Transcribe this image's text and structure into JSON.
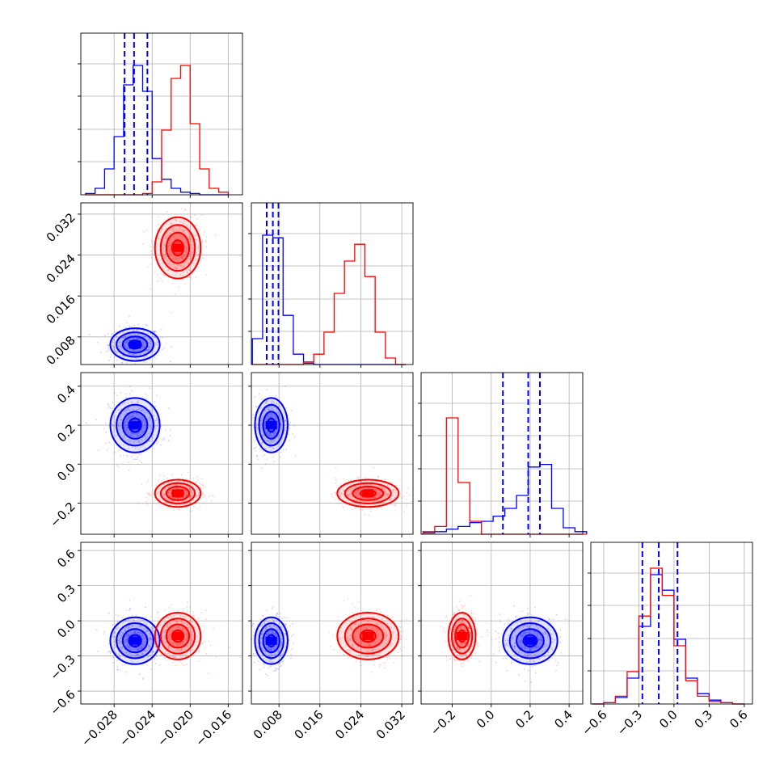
{
  "figure": {
    "background": "#ffffff",
    "grid": true,
    "colors": {
      "blue": "#0000ff",
      "red": "#ff0000",
      "grid": "#b0b0b0"
    }
  },
  "chart_data": {
    "type": "corner",
    "parameters": 4,
    "axis_ranges": [
      [
        -0.0315,
        -0.0145
      ],
      [
        0.0026,
        0.0342
      ],
      [
        -0.36,
        0.47
      ],
      [
        -0.71,
        0.67
      ]
    ],
    "x_ticks": [
      {
        "values": [
          -0.028,
          -0.024,
          -0.02,
          -0.016
        ],
        "labels": [
          "−0.028",
          "−0.024",
          "−0.020",
          "−0.016"
        ]
      },
      {
        "values": [
          0.008,
          0.016,
          0.024,
          0.032
        ],
        "labels": [
          "0.008",
          "0.016",
          "0.024",
          "0.032"
        ]
      },
      {
        "values": [
          -0.2,
          0.0,
          0.2,
          0.4
        ],
        "labels": [
          "−0.2",
          "0.0",
          "0.2",
          "0.4"
        ]
      },
      {
        "values": [
          -0.6,
          -0.3,
          0.0,
          0.3,
          0.6
        ],
        "labels": [
          "−0.6",
          "−0.3",
          "0.0",
          "0.3",
          "0.6"
        ]
      }
    ],
    "y_ticks": [
      null,
      {
        "values": [
          0.008,
          0.016,
          0.024,
          0.032
        ],
        "labels": [
          "0.008",
          "0.016",
          "0.024",
          "0.032"
        ]
      },
      {
        "values": [
          -0.2,
          0.0,
          0.2,
          0.4
        ],
        "labels": [
          "−0.2",
          "0.0",
          "0.2",
          "0.4"
        ]
      },
      {
        "values": [
          -0.6,
          -0.3,
          0.0,
          0.3,
          0.6
        ],
        "labels": [
          "−0.6",
          "−0.3",
          "0.0",
          "0.3",
          "0.6"
        ]
      }
    ],
    "series": [
      {
        "color": "#0000ff",
        "means": [
          -0.0258,
          0.0065,
          0.2,
          -0.17
        ],
        "sds": [
          0.0013,
          0.0016,
          0.07,
          0.1
        ],
        "quantile_lines": [
          [
            -0.0269,
            -0.0259,
            -0.0245
          ],
          [
            0.0056,
            0.0068,
            0.0079
          ],
          [
            0.06,
            0.19,
            0.25
          ],
          [
            -0.27,
            -0.13,
            0.03
          ]
        ]
      },
      {
        "color": "#ff0000",
        "means": [
          -0.0213,
          0.0254,
          -0.15,
          -0.13
        ],
        "sds": [
          0.0012,
          0.003,
          0.035,
          0.1
        ]
      }
    ],
    "histograms": [
      {
        "edges": [
          -0.031,
          -0.03,
          -0.029,
          -0.028,
          -0.027,
          -0.026,
          -0.025,
          -0.024,
          -0.023,
          -0.022,
          -0.021,
          -0.02,
          -0.019,
          -0.018,
          -0.017,
          -0.016
        ],
        "blue": [
          0.01,
          0.05,
          0.2,
          0.45,
          0.85,
          1.0,
          0.8,
          0.28,
          0.12,
          0.05,
          0.02,
          0.01,
          0.0,
          0.0,
          0.0
        ],
        "red": [
          0.0,
          0.0,
          0.0,
          0.0,
          0.0,
          0.0,
          0.01,
          0.1,
          0.5,
          0.9,
          1.0,
          0.55,
          0.2,
          0.05,
          0.02
        ]
      },
      {
        "edges": [
          0.0028,
          0.0048,
          0.0068,
          0.0088,
          0.0108,
          0.0128,
          0.0148,
          0.0168,
          0.0188,
          0.0208,
          0.0228,
          0.0248,
          0.0268,
          0.0288,
          0.0308,
          0.0328
        ],
        "blue": [
          0.2,
          1.0,
          0.98,
          0.38,
          0.08,
          0.01,
          0.0,
          0.0,
          0.0,
          0.0,
          0.0,
          0.0,
          0.0,
          0.0,
          0.0
        ],
        "red": [
          0.0,
          0.0,
          0.0,
          0.0,
          0.0,
          0.02,
          0.08,
          0.25,
          0.55,
          0.8,
          0.93,
          0.68,
          0.25,
          0.05,
          0.0
        ]
      },
      {
        "edges": [
          -0.35,
          -0.29,
          -0.23,
          -0.17,
          -0.11,
          -0.05,
          0.01,
          0.07,
          0.13,
          0.19,
          0.25,
          0.31,
          0.37,
          0.43,
          0.49
        ],
        "blue": [
          0.01,
          0.02,
          0.04,
          0.06,
          0.09,
          0.1,
          0.14,
          0.2,
          0.3,
          0.52,
          0.54,
          0.2,
          0.05,
          0.02
        ],
        "red": [
          0.02,
          0.06,
          0.9,
          0.4,
          0.1,
          0.0,
          0.0,
          0.0,
          0.0,
          0.0,
          0.0,
          0.0,
          0.0,
          0.0
        ]
      },
      {
        "edges": [
          -0.7,
          -0.6,
          -0.5,
          -0.4,
          -0.3,
          -0.2,
          -0.1,
          0.0,
          0.1,
          0.2,
          0.3,
          0.4,
          0.5,
          0.6
        ],
        "blue": [
          0.0,
          0.01,
          0.05,
          0.2,
          0.6,
          1.0,
          0.88,
          0.5,
          0.2,
          0.08,
          0.03,
          0.01,
          0.0
        ],
        "red": [
          0.0,
          0.01,
          0.06,
          0.25,
          0.68,
          1.05,
          0.84,
          0.45,
          0.18,
          0.06,
          0.02,
          0.01,
          0.0
        ]
      }
    ]
  }
}
